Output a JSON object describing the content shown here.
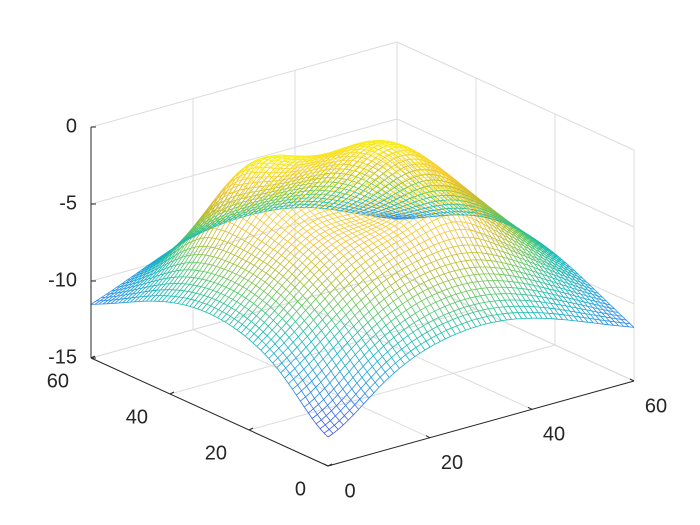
{
  "chart_data": {
    "type": "surface-mesh",
    "title": "",
    "xlabel": "",
    "ylabel": "",
    "zlabel": "",
    "xlim": [
      0,
      60
    ],
    "ylim": [
      0,
      60
    ],
    "zlim": [
      -15,
      0
    ],
    "x_ticks": [
      "0",
      "20",
      "40",
      "60"
    ],
    "y_ticks": [
      "0",
      "20",
      "40",
      "60"
    ],
    "z_ticks": [
      "0",
      "-5",
      "-10",
      "-15"
    ],
    "grid": true,
    "colormap": [
      "#3e26a8",
      "#3d4fe5",
      "#2f7cf6",
      "#1fa1dd",
      "#17bcb2",
      "#59c864",
      "#bcbd32",
      "#f6c43b",
      "#f9dd2b",
      "#f9fb15"
    ],
    "mesh_size": [
      60,
      60
    ],
    "surface_description": "sum of radial peaks centered at (30,30)",
    "corner_values": {
      "x0_y0": -13.0,
      "x60_y0": -13.0,
      "x0_y60": -13.0,
      "x60_y60": -13.0
    },
    "center_value": -8.0,
    "max_value": -1.6
  }
}
